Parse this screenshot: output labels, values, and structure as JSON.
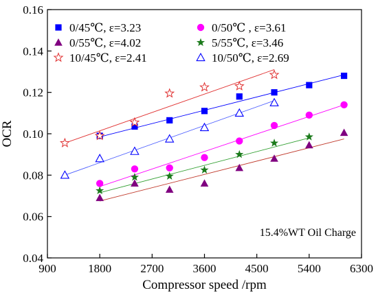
{
  "chart_data": {
    "type": "scatter",
    "xlabel": "Compressor speed /rpm",
    "ylabel": "OCR",
    "xlim": [
      900,
      6300
    ],
    "ylim": [
      0.04,
      0.16
    ],
    "xticks": [
      900,
      1800,
      2700,
      3600,
      4500,
      5400,
      6300
    ],
    "yticks": [
      0.04,
      0.06,
      0.08,
      0.1,
      0.12,
      0.14,
      0.16
    ],
    "x_tick_labels": [
      "900",
      "1800",
      "2700",
      "3600",
      "4500",
      "5400",
      "6300"
    ],
    "y_tick_labels": [
      "0.04",
      "0.06",
      "0.08",
      "0.10",
      "0.12",
      "0.14",
      "0.16"
    ],
    "grid": false,
    "legend_position": "top",
    "annotation": "15.4%WT Oil Charge",
    "series": [
      {
        "name": "0/45℃, ε=3.23",
        "marker": "filled-square",
        "color": "#0000ff",
        "x": [
          1800,
          2400,
          3000,
          3600,
          4200,
          4800,
          5400,
          6000
        ],
        "y": [
          0.099,
          0.1035,
          0.1065,
          0.111,
          0.118,
          0.12,
          0.1235,
          0.128
        ],
        "fit": [
          [
            1800,
            0.0985
          ],
          [
            6000,
            0.1285
          ]
        ],
        "fit_color": "#0000ff"
      },
      {
        "name": "0/50℃ , ε=3.61",
        "marker": "filled-circle",
        "color": "#ff00ff",
        "x": [
          1800,
          2400,
          3000,
          3600,
          4200,
          4800,
          5400,
          6000
        ],
        "y": [
          0.076,
          0.083,
          0.0835,
          0.0885,
          0.0965,
          0.104,
          0.109,
          0.114
        ],
        "fit": [
          [
            1800,
            0.0745
          ],
          [
            6000,
            0.114
          ]
        ],
        "fit_color": "#ff00ff"
      },
      {
        "name": "0/55℃, ε=4.02",
        "marker": "filled-triangle",
        "color": "#800080",
        "x": [
          1800,
          2400,
          3000,
          3600,
          4200,
          4800,
          5400,
          6000
        ],
        "y": [
          0.069,
          0.076,
          0.073,
          0.076,
          0.0835,
          0.088,
          0.0945,
          0.1005
        ],
        "fit": [
          [
            1800,
            0.0675
          ],
          [
            6000,
            0.0975
          ]
        ],
        "fit_color": "#c0392b"
      },
      {
        "name": "5/55℃, ε=3.46",
        "marker": "filled-star",
        "color": "#1b7a1b",
        "x": [
          1800,
          2400,
          3000,
          3600,
          4200,
          4800,
          5400
        ],
        "y": [
          0.0725,
          0.079,
          0.0795,
          0.0825,
          0.09,
          0.0955,
          0.0985
        ],
        "fit": [
          [
            1800,
            0.0715
          ],
          [
            5400,
            0.098
          ]
        ],
        "fit_color": "#2e9e2e"
      },
      {
        "name": "10/45℃, ε=2.41",
        "marker": "open-star",
        "color": "#e03030",
        "x": [
          1200,
          1800,
          2400,
          3000,
          3600,
          4200,
          4800
        ],
        "y": [
          0.0955,
          0.099,
          0.1055,
          0.1195,
          0.1225,
          0.123,
          0.1285
        ],
        "fit": [
          [
            1200,
            0.0955
          ],
          [
            4800,
            0.131
          ]
        ],
        "fit_color": "#e03030"
      },
      {
        "name": "10/50℃, ε=2.69",
        "marker": "open-triangle",
        "color": "#0000ff",
        "x": [
          1200,
          1800,
          2400,
          3000,
          3600,
          4200,
          4800
        ],
        "y": [
          0.08,
          0.088,
          0.0915,
          0.0975,
          0.103,
          0.11,
          0.115
        ],
        "fit": [
          [
            1200,
            0.08
          ],
          [
            4800,
            0.116
          ]
        ],
        "fit_color": "#4a5cff"
      }
    ]
  }
}
